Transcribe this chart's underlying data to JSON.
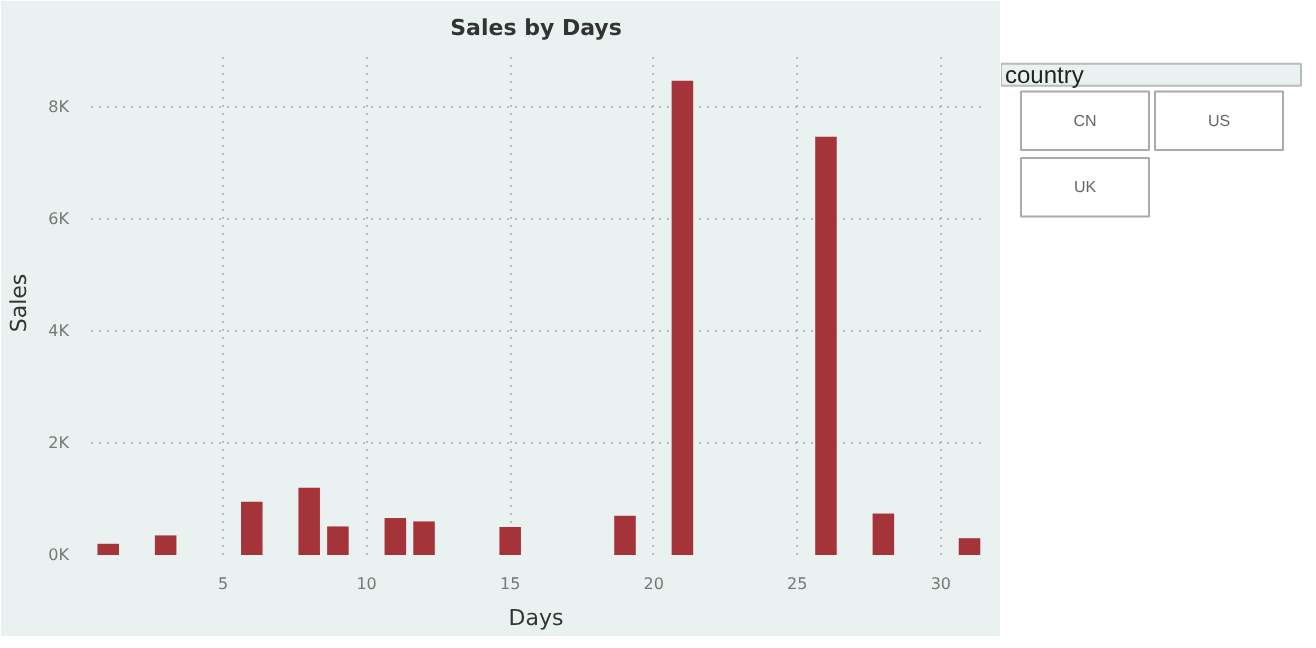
{
  "chart_data": [
    {
      "type": "bar",
      "title": "Sales by Days",
      "xlabel": "Days",
      "ylabel": "Sales",
      "color": "#a4343a",
      "x": [
        1,
        3,
        6,
        8,
        9,
        11,
        12,
        15,
        19,
        21,
        26,
        28,
        31
      ],
      "values": [
        200,
        350,
        950,
        1200,
        510,
        660,
        600,
        500,
        700,
        8470,
        7470,
        740,
        300
      ],
      "xlim": [
        0.4,
        31.4
      ],
      "xticks": [
        5,
        10,
        15,
        20,
        25,
        30
      ],
      "ylim": [
        0,
        9000
      ],
      "yticks": [
        {
          "value": 0,
          "label": "0K"
        },
        {
          "value": 2000,
          "label": "2K"
        },
        {
          "value": 4000,
          "label": "4K"
        },
        {
          "value": 6000,
          "label": "6K"
        },
        {
          "value": 8000,
          "label": "8K"
        }
      ],
      "grid": true
    },
    {
      "type": "other",
      "title": "country",
      "annotations": [
        "CN",
        "US",
        "UK"
      ]
    }
  ]
}
